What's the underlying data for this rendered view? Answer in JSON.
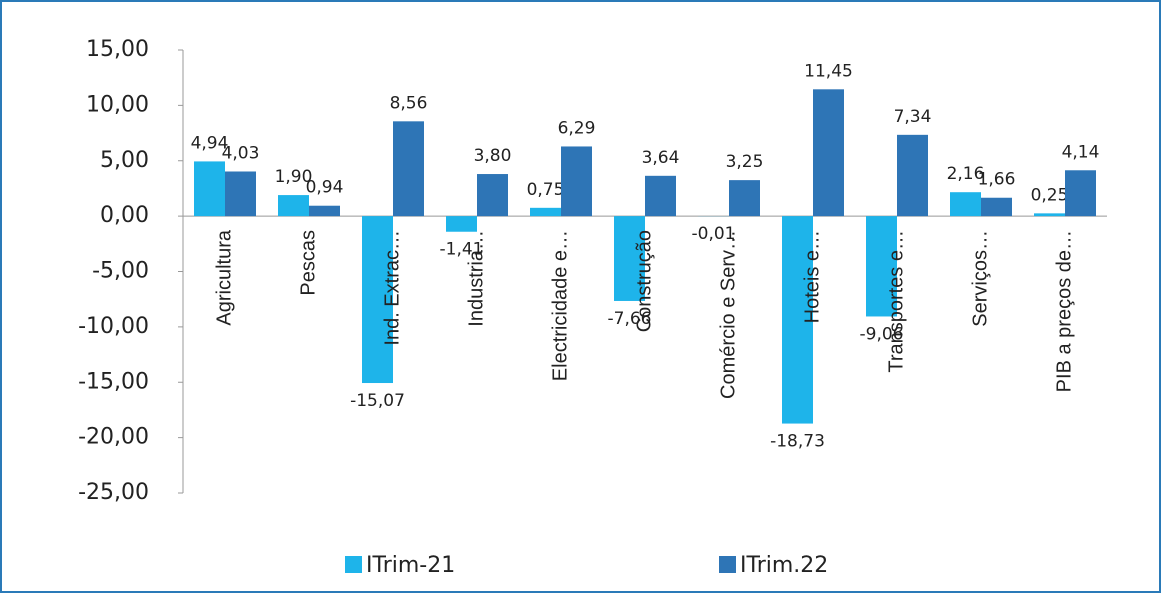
{
  "chart_data": {
    "type": "bar",
    "categories": [
      "Agricultura",
      "Pescas",
      "Ind. Extrac…",
      "Industria…",
      "Electricidade e…",
      "Construção",
      "Comércio e Serv…",
      "Hoteis e…",
      "Transportes e…",
      "Serviços…",
      "PIB a preços de…"
    ],
    "series": [
      {
        "name": "ITrim-21",
        "color": "#1eb4ea",
        "values": [
          4.94,
          1.9,
          -15.07,
          -1.41,
          0.75,
          -7.66,
          -0.01,
          -18.73,
          -9.06,
          2.16,
          0.25
        ],
        "value_labels": [
          "4,94",
          "1,90",
          "-15,07",
          "-1,41",
          "0,75",
          "-7,66",
          "-0,01",
          "-18,73",
          "-9,06",
          "2,16",
          "0,25"
        ]
      },
      {
        "name": "ITrim.22",
        "color": "#2e75b6",
        "values": [
          4.03,
          0.94,
          8.56,
          3.8,
          6.29,
          3.64,
          3.25,
          11.45,
          7.34,
          1.66,
          4.14
        ],
        "value_labels": [
          "4,03",
          "0,94",
          "8,56",
          "3,80",
          "6,29",
          "3,64",
          "3,25",
          "11,45",
          "7,34",
          "1,66",
          "4,14"
        ]
      }
    ],
    "ylim": [
      -25,
      15
    ],
    "yticks": [
      {
        "value": -25,
        "label": "-25,00"
      },
      {
        "value": -20,
        "label": "-20,00"
      },
      {
        "value": -15,
        "label": "-15,00"
      },
      {
        "value": -10,
        "label": "-10,00"
      },
      {
        "value": -5,
        "label": "-5,00"
      },
      {
        "value": 0,
        "label": "0,00"
      },
      {
        "value": 5,
        "label": "5,00"
      },
      {
        "value": 10,
        "label": "10,00"
      },
      {
        "value": 15,
        "label": "15,00"
      }
    ],
    "grid": false
  }
}
